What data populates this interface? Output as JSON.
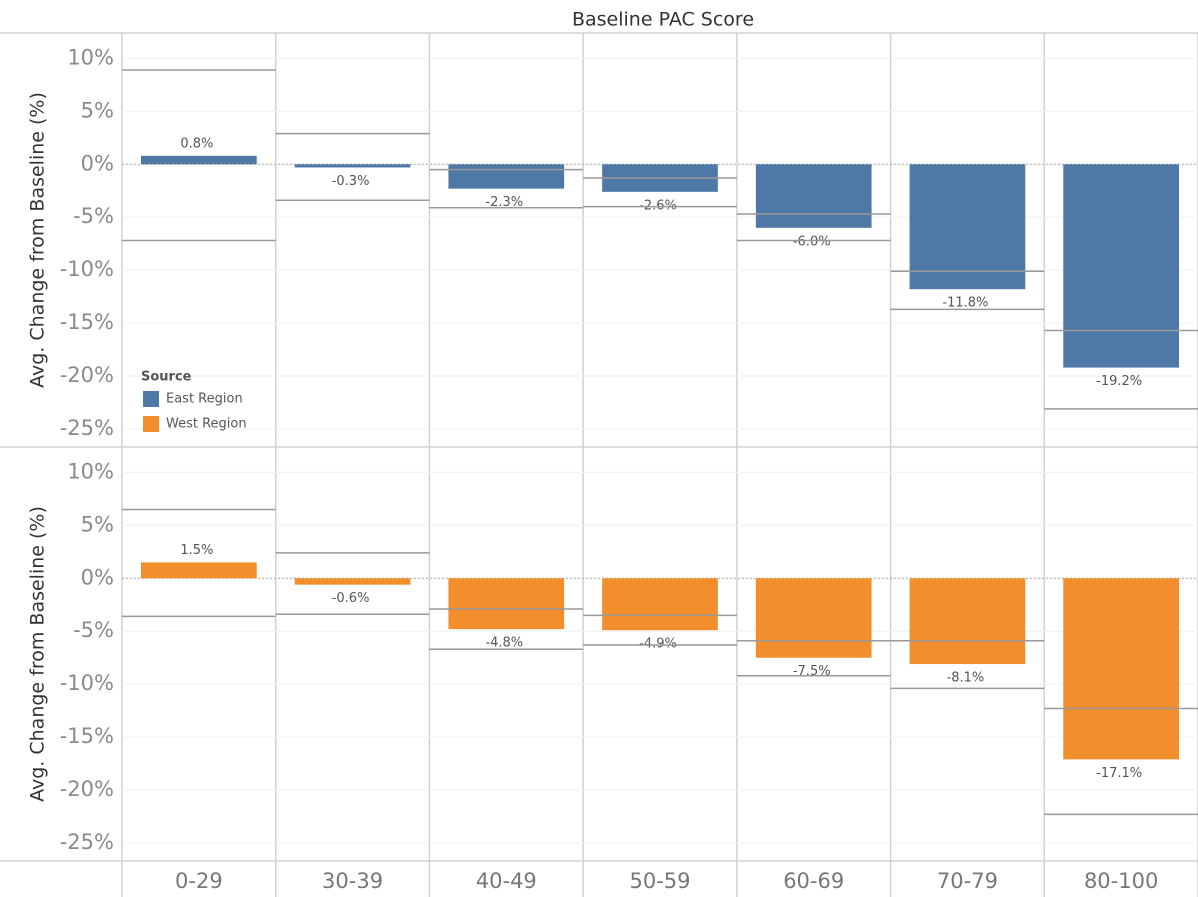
{
  "chart_data": {
    "type": "bar",
    "title": "Baseline PAC Score",
    "y_label": "Avg. Change from Baseline (%)",
    "legend_title": "Source",
    "legend": "lower left",
    "grid": true,
    "categories": [
      "0-29",
      "30-39",
      "40-49",
      "50-59",
      "60-69",
      "70-79",
      "80-100"
    ],
    "ylim": [
      -26.7,
      12.4
    ],
    "yticks": [
      {
        "value": 10,
        "label": "10%"
      },
      {
        "value": 5,
        "label": "5%"
      },
      {
        "value": 0,
        "label": "0%"
      },
      {
        "value": -5,
        "label": "-5%"
      },
      {
        "value": -10,
        "label": "-10%"
      },
      {
        "value": -15,
        "label": "-15%"
      },
      {
        "value": -20,
        "label": "-20%"
      },
      {
        "value": -25,
        "label": "-25%"
      }
    ],
    "series": [
      {
        "name": "East Region",
        "color": "#4e79a7",
        "values": [
          0.8,
          -0.3,
          -2.3,
          -2.6,
          -6.0,
          -11.8,
          -19.2
        ],
        "value_labels": [
          "0.8%",
          "-0.3%",
          "-2.3%",
          "-2.6%",
          "-6.0%",
          "-11.8%",
          "-19.2%"
        ],
        "upper": [
          8.9,
          2.9,
          -0.5,
          -1.3,
          -4.7,
          -10.1,
          -15.7
        ],
        "lower": [
          -7.2,
          -3.4,
          -4.1,
          -4.0,
          -7.2,
          -13.7,
          -23.1
        ]
      },
      {
        "name": "West Region",
        "color": "#f28e2b",
        "values": [
          1.5,
          -0.6,
          -4.8,
          -4.9,
          -7.5,
          -8.1,
          -17.1
        ],
        "value_labels": [
          "1.5%",
          "-0.6%",
          "-4.8%",
          "-4.9%",
          "-7.5%",
          "-8.1%",
          "-17.1%"
        ],
        "upper": [
          6.5,
          2.4,
          -2.9,
          -3.5,
          -5.9,
          -5.9,
          -12.3
        ],
        "lower": [
          -3.6,
          -3.4,
          -6.7,
          -6.3,
          -9.2,
          -10.4,
          -22.3
        ]
      }
    ]
  }
}
